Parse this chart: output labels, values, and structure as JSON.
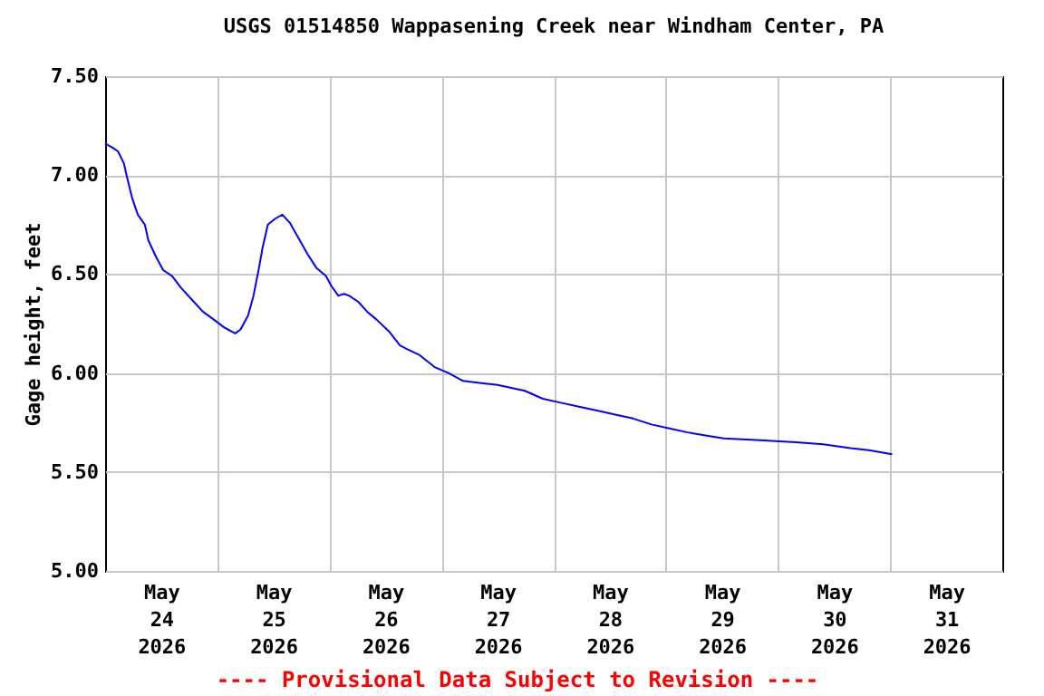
{
  "chart_data": {
    "type": "line",
    "title": "USGS 01514850 Wappasening Creek near Windham Center, PA",
    "ylabel": "Gage height, feet",
    "annotations": [
      "---- Provisional Data Subject to Revision ----"
    ],
    "series": [
      {
        "color": "#0000ff",
        "x": [
          "2026-05-24T00:00",
          "2026-05-24T01:30",
          "2026-05-24T02:45",
          "2026-05-24T04:00",
          "2026-05-24T04:35",
          "2026-05-24T05:50",
          "2026-05-24T07:00",
          "2026-05-24T08:30",
          "2026-05-24T09:15",
          "2026-05-24T10:50",
          "2026-05-24T12:25",
          "2026-05-24T14:20",
          "2026-05-24T16:15",
          "2026-05-24T18:35",
          "2026-05-24T20:55",
          "2026-05-24T23:15",
          "2026-05-25T01:30",
          "2026-05-25T03:50",
          "2026-05-25T05:00",
          "2026-05-25T06:35",
          "2026-05-25T07:45",
          "2026-05-25T08:55",
          "2026-05-25T09:40",
          "2026-05-25T10:50",
          "2026-05-25T12:25",
          "2026-05-25T13:55",
          "2026-05-25T15:30",
          "2026-05-25T17:25",
          "2026-05-25T19:20",
          "2026-05-25T21:15",
          "2026-05-25T23:15",
          "2026-05-26T00:25",
          "2026-05-26T01:55",
          "2026-05-26T03:05",
          "2026-05-26T04:15",
          "2026-05-26T06:10",
          "2026-05-26T08:05",
          "2026-05-26T10:05",
          "2026-05-26T12:45",
          "2026-05-26T15:05",
          "2026-05-26T16:40",
          "2026-05-26T19:20",
          "2026-05-26T22:30",
          "2026-05-27T01:30",
          "2026-05-27T04:35",
          "2026-05-27T08:05",
          "2026-05-27T12:00",
          "2026-05-27T17:50",
          "2026-05-27T21:40",
          "2026-05-28T01:30",
          "2026-05-28T05:25",
          "2026-05-28T09:15",
          "2026-05-28T13:10",
          "2026-05-28T17:00",
          "2026-05-28T20:55",
          "2026-05-29T00:45",
          "2026-05-29T04:40",
          "2026-05-29T09:40",
          "2026-05-29T12:25",
          "2026-05-29T20:10",
          "2026-05-30T03:50",
          "2026-05-30T09:40",
          "2026-05-30T15:30",
          "2026-05-30T19:25",
          "2026-05-31T00:25"
        ],
        "values": [
          7.16,
          7.14,
          7.12,
          7.06,
          7.0,
          6.88,
          6.8,
          6.75,
          6.67,
          6.59,
          6.52,
          6.49,
          6.43,
          6.37,
          6.31,
          6.27,
          6.23,
          6.2,
          6.22,
          6.29,
          6.39,
          6.53,
          6.63,
          6.75,
          6.78,
          6.8,
          6.76,
          6.68,
          6.6,
          6.53,
          6.49,
          6.44,
          6.39,
          6.4,
          6.39,
          6.36,
          6.31,
          6.27,
          6.21,
          6.14,
          6.12,
          6.09,
          6.03,
          6.0,
          5.96,
          5.95,
          5.94,
          5.91,
          5.87,
          5.85,
          5.83,
          5.81,
          5.79,
          5.77,
          5.74,
          5.72,
          5.7,
          5.68,
          5.67,
          5.66,
          5.65,
          5.64,
          5.62,
          5.61,
          5.59
        ]
      }
    ],
    "xlim": [
      "2026-05-24",
      "2026-06-01"
    ],
    "xticks": [
      {
        "value": "2026-05-24T12:00",
        "label": "May 24 2026"
      },
      {
        "value": "2026-05-25T12:00",
        "label": "May 25 2026"
      },
      {
        "value": "2026-05-26T12:00",
        "label": "May 26 2026"
      },
      {
        "value": "2026-05-27T12:00",
        "label": "May 27 2026"
      },
      {
        "value": "2026-05-28T12:00",
        "label": "May 28 2026"
      },
      {
        "value": "2026-05-29T12:00",
        "label": "May 29 2026"
      },
      {
        "value": "2026-05-30T12:00",
        "label": "May 30 2026"
      },
      {
        "value": "2026-05-31T12:00",
        "label": "May 31 2026"
      },
      {
        "value": "2026-05-25",
        "label": null
      },
      {
        "value": "2026-05-26",
        "label": null
      },
      {
        "value": "2026-05-27",
        "label": null
      },
      {
        "value": "2026-05-28",
        "label": null
      },
      {
        "value": "2026-05-29",
        "label": null
      },
      {
        "value": "2026-05-30",
        "label": null
      },
      {
        "value": "2026-05-31",
        "label": null
      }
    ],
    "ylim": [
      5.0,
      7.5
    ],
    "yticks": [
      {
        "value": 5.0,
        "label": "5.00"
      },
      {
        "value": 5.5,
        "label": "5.50"
      },
      {
        "value": 6.0,
        "label": "6.00"
      },
      {
        "value": 6.5,
        "label": "6.50"
      },
      {
        "value": 7.0,
        "label": "7.00"
      },
      {
        "value": 7.5,
        "label": "7.50"
      }
    ],
    "grid": true,
    "marker": "none",
    "line_style": "solid"
  }
}
